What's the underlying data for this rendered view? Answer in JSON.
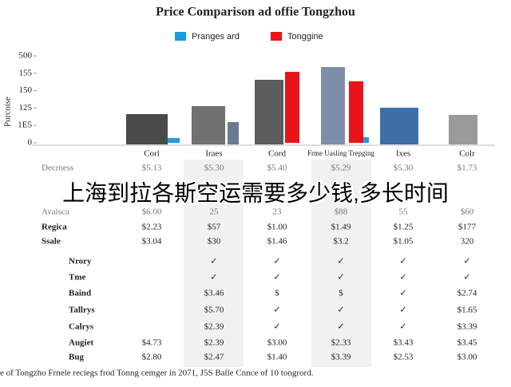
{
  "chart_data": {
    "type": "bar",
    "title": "Price Comparison ad offie Tongzhou",
    "y_label": "Purcoise",
    "categories": [
      "Corl",
      "Iraes",
      "Cord",
      "Frme Uasling Trepging",
      "Ixes",
      "Colr"
    ],
    "series": [
      {
        "name": "Pranges ard",
        "color": "#1e9be0",
        "values": [
          14,
          null,
          null,
          16,
          null,
          null
        ]
      },
      {
        "name": "Tonggine",
        "color": "#e8141a",
        "values": [
          null,
          null,
          204,
          177,
          null,
          null
        ]
      }
    ],
    "ylim": [
      0,
      250
    ],
    "yticks": [
      0,
      {
        "value": 50,
        "label": "1E5"
      },
      {
        "value": 100,
        "label": "125"
      },
      150,
      {
        "value": 200,
        "label": "155"
      },
      {
        "value": 250,
        "label": "500"
      }
    ]
  },
  "table": {
    "rows": [
      [
        "Decrness",
        "$5.13",
        "$5.30",
        "$5.40",
        "$5.29",
        "$5.30",
        "$1.73"
      ],
      [
        "Avaisca",
        "$6.00",
        "25",
        "23",
        "$88",
        "55",
        "$60"
      ],
      [
        "Regica",
        "$2.23",
        "$57",
        "$1.00",
        "$1.49",
        "$1.25",
        "$177"
      ],
      [
        "Ssale",
        "$3.04",
        "$30",
        "$1.46",
        "$3.2",
        "$1.05",
        "320"
      ],
      [
        "Nrory",
        null,
        "✓",
        "✓",
        "✓",
        "✓",
        "✓"
      ],
      [
        "Tme",
        null,
        "✓",
        "✓",
        "✓",
        "✓",
        "✓"
      ],
      [
        "Baind",
        null,
        "$3.46",
        "$",
        "$",
        "✓",
        "$2.74"
      ],
      [
        "Tallrys",
        null,
        "$5.70",
        "✓",
        "✓",
        "✓",
        "$1.65"
      ],
      [
        "Calrys",
        null,
        "$2.39",
        "✓",
        "✓",
        "✓",
        "$3.39"
      ],
      [
        "Augiet",
        "$4.73",
        "$2.39",
        "$3.00",
        "$2.33",
        "$3.43",
        "$3.45"
      ],
      [
        "Bug",
        "$2.80",
        "$2.47",
        "$1.40",
        "$3.39",
        "$2.53",
        "$3.00"
      ]
    ]
  },
  "overlay_text": "上海到拉各斯空运需要多少钱,多长时间",
  "footer": "e of Tongzho Frnele reciegs frod Tonng cemger in 2071, J5S Balle Cnnce of 10 tongrord."
}
